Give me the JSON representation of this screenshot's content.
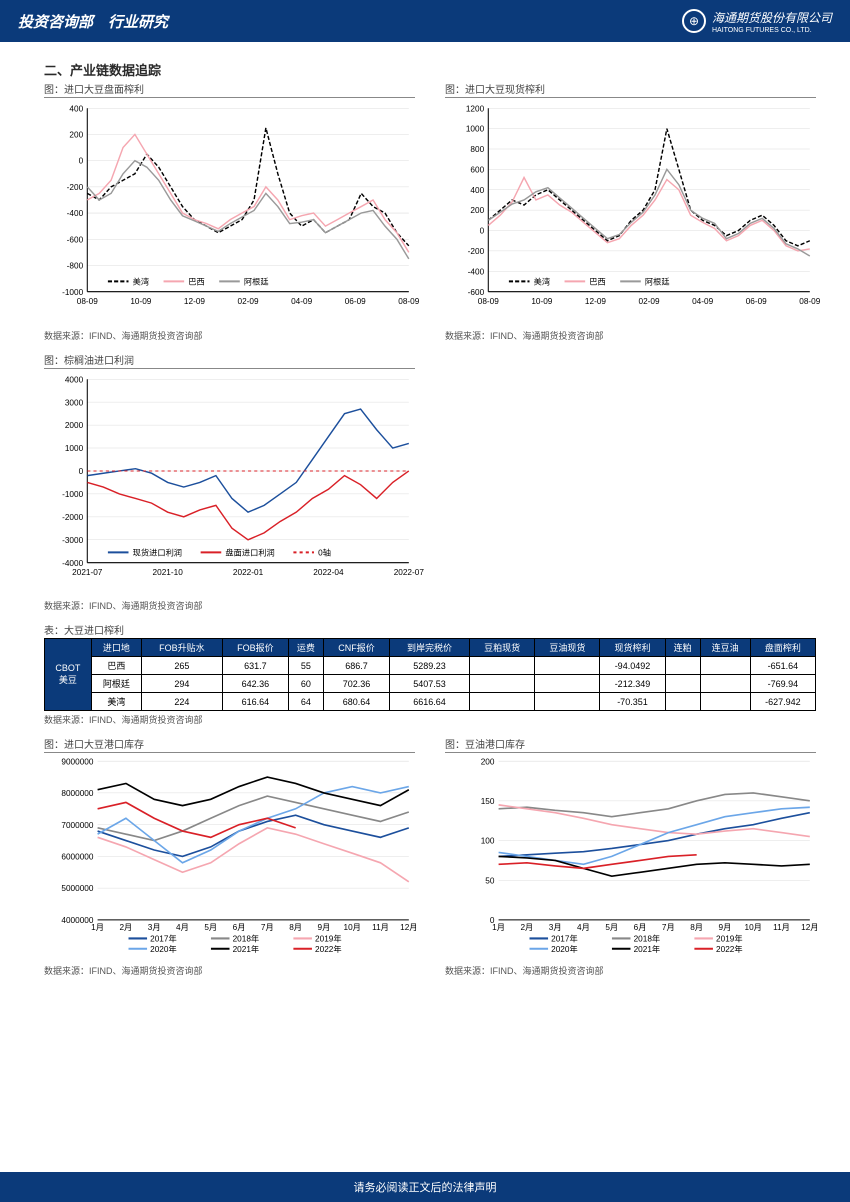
{
  "header": {
    "left": "投资咨询部　行业研究",
    "logo_main": "海通期货股份有限公司",
    "logo_sub": "HAITONG FUTURES CO., LTD."
  },
  "section_title": "二、产业链数据追踪",
  "source_text": "数据来源：IFIND、海通期货投资咨询部",
  "chart1": {
    "title": "图：进口大豆盘面榨利",
    "ylim": [
      -1000,
      400
    ],
    "ytick_step": 200,
    "xticks": [
      "08-09",
      "10-09",
      "12-09",
      "02-09",
      "04-09",
      "06-09",
      "08-09"
    ],
    "series": [
      {
        "name": "美湾",
        "color": "#000000",
        "dash": "4,2"
      },
      {
        "name": "巴西",
        "color": "#f5a6b0",
        "dash": ""
      },
      {
        "name": "阿根廷",
        "color": "#999999",
        "dash": ""
      }
    ],
    "s1": [
      -250,
      -300,
      -200,
      -150,
      -100,
      50,
      -50,
      -200,
      -350,
      -450,
      -500,
      -550,
      -500,
      -450,
      -300,
      250,
      -100,
      -400,
      -500,
      -450,
      -550,
      -500,
      -450,
      -250,
      -350,
      -400,
      -550,
      -650
    ],
    "s2": [
      -300,
      -250,
      -150,
      100,
      200,
      50,
      -100,
      -250,
      -400,
      -450,
      -480,
      -520,
      -450,
      -400,
      -350,
      -200,
      -300,
      -450,
      -420,
      -400,
      -500,
      -450,
      -400,
      -350,
      -300,
      -450,
      -550,
      -700
    ],
    "s3": [
      -200,
      -300,
      -250,
      -100,
      0,
      -50,
      -150,
      -300,
      -420,
      -460,
      -500,
      -540,
      -480,
      -430,
      -380,
      -250,
      -350,
      -480,
      -470,
      -450,
      -550,
      -500,
      -450,
      -400,
      -380,
      -500,
      -600,
      -750
    ]
  },
  "chart2": {
    "title": "图：进口大豆现货榨利",
    "ylim": [
      -600,
      1200
    ],
    "ytick_step": 200,
    "xticks": [
      "08-09",
      "10-09",
      "12-09",
      "02-09",
      "04-09",
      "06-09",
      "08-09"
    ],
    "series": [
      {
        "name": "美湾",
        "color": "#000000",
        "dash": "4,2"
      },
      {
        "name": "巴西",
        "color": "#f5a6b0",
        "dash": ""
      },
      {
        "name": "阿根廷",
        "color": "#999999",
        "dash": ""
      }
    ],
    "s1": [
      100,
      200,
      300,
      250,
      350,
      400,
      300,
      200,
      100,
      0,
      -100,
      -50,
      100,
      200,
      400,
      1000,
      600,
      200,
      100,
      50,
      -50,
      0,
      100,
      150,
      50,
      -100,
      -150,
      -100
    ],
    "s2": [
      50,
      150,
      280,
      520,
      300,
      350,
      250,
      180,
      80,
      -20,
      -120,
      -80,
      50,
      150,
      300,
      500,
      400,
      150,
      80,
      20,
      -100,
      -50,
      50,
      100,
      0,
      -150,
      -200,
      -180
    ],
    "s3": [
      100,
      180,
      260,
      300,
      380,
      420,
      320,
      220,
      120,
      20,
      -80,
      -40,
      80,
      180,
      350,
      600,
      450,
      200,
      120,
      70,
      -80,
      -30,
      70,
      120,
      20,
      -130,
      -180,
      -250
    ]
  },
  "chart3": {
    "title": "图：棕榈油进口利润",
    "ylim": [
      -4000,
      4000
    ],
    "ytick_step": 1000,
    "xticks": [
      "2021-07",
      "2021-10",
      "2022-01",
      "2022-04",
      "2022-07"
    ],
    "series": [
      {
        "name": "现货进口利润",
        "color": "#1c4f9c",
        "dash": ""
      },
      {
        "name": "盘面进口利润",
        "color": "#d92027",
        "dash": ""
      },
      {
        "name": "0轴",
        "color": "#d92027",
        "dash": "3,3"
      }
    ],
    "s1": [
      -200,
      -100,
      0,
      100,
      -100,
      -500,
      -700,
      -500,
      -200,
      -1200,
      -1800,
      -1500,
      -1000,
      -500,
      500,
      1500,
      2500,
      2700,
      1800,
      1000,
      1200
    ],
    "s2": [
      -500,
      -700,
      -1000,
      -1200,
      -1400,
      -1800,
      -2000,
      -1700,
      -1500,
      -2500,
      -3000,
      -2700,
      -2200,
      -1800,
      -1200,
      -800,
      -200,
      -600,
      -1200,
      -500,
      0
    ]
  },
  "table": {
    "title": "表：大豆进口榨利",
    "columns": [
      "进口地",
      "FOB升贴水",
      "FOB报价",
      "运费",
      "CNF报价",
      "到岸完税价",
      "豆粕现货",
      "豆油现货",
      "现货榨利",
      "连粕",
      "连豆油",
      "盘面榨利"
    ],
    "row_header": "CBOT美豆",
    "rows": [
      [
        "巴西",
        "265",
        "631.7",
        "55",
        "686.7",
        "5289.23",
        "",
        "",
        "-94.0492",
        "",
        "",
        "-651.64"
      ],
      [
        "阿根廷",
        "294",
        "642.36",
        "60",
        "702.36",
        "5407.53",
        "",
        "",
        "-212.349",
        "",
        "",
        "-769.94"
      ],
      [
        "美湾",
        "224",
        "616.64",
        "64",
        "680.64",
        "6616.64",
        "",
        "",
        "-70.351",
        "",
        "",
        "-627.942"
      ]
    ]
  },
  "chart4": {
    "title": "图：进口大豆港口库存",
    "ylim": [
      4000000,
      9000000
    ],
    "ytick_step": 1000000,
    "xticks": [
      "1月",
      "2月",
      "3月",
      "4月",
      "5月",
      "6月",
      "7月",
      "8月",
      "9月",
      "10月",
      "11月",
      "12月"
    ],
    "series": [
      {
        "name": "2017年",
        "color": "#1c4f9c"
      },
      {
        "name": "2018年",
        "color": "#888888"
      },
      {
        "name": "2019年",
        "color": "#f5a6b0"
      },
      {
        "name": "2020年",
        "color": "#6ba6e8"
      },
      {
        "name": "2021年",
        "color": "#000000"
      },
      {
        "name": "2022年",
        "color": "#d92027"
      }
    ],
    "data": {
      "2017": [
        6800000,
        6500000,
        6200000,
        6000000,
        6300000,
        6800000,
        7100000,
        7300000,
        7000000,
        6800000,
        6600000,
        6900000
      ],
      "2018": [
        6900000,
        6700000,
        6500000,
        6800000,
        7200000,
        7600000,
        7900000,
        7700000,
        7500000,
        7300000,
        7100000,
        7400000
      ],
      "2019": [
        6600000,
        6300000,
        5900000,
        5500000,
        5800000,
        6400000,
        6900000,
        6700000,
        6400000,
        6100000,
        5800000,
        5200000
      ],
      "2020": [
        6700000,
        7200000,
        6500000,
        5800000,
        6200000,
        6800000,
        7200000,
        7500000,
        8000000,
        8200000,
        8000000,
        8200000
      ],
      "2021": [
        8100000,
        8300000,
        7800000,
        7600000,
        7800000,
        8200000,
        8500000,
        8300000,
        8000000,
        7800000,
        7600000,
        8100000
      ],
      "2022": [
        7500000,
        7700000,
        7200000,
        6800000,
        6600000,
        7000000,
        7200000,
        6900000
      ]
    }
  },
  "chart5": {
    "title": "图：豆油港口库存",
    "ylim": [
      0,
      200
    ],
    "ytick_step": 50,
    "xticks": [
      "1月",
      "2月",
      "3月",
      "4月",
      "5月",
      "6月",
      "7月",
      "8月",
      "9月",
      "10月",
      "11月",
      "12月"
    ],
    "series": [
      {
        "name": "2017年",
        "color": "#1c4f9c"
      },
      {
        "name": "2018年",
        "color": "#888888"
      },
      {
        "name": "2019年",
        "color": "#f5a6b0"
      },
      {
        "name": "2020年",
        "color": "#6ba6e8"
      },
      {
        "name": "2021年",
        "color": "#000000"
      },
      {
        "name": "2022年",
        "color": "#d92027"
      }
    ],
    "data": {
      "2017": [
        80,
        82,
        84,
        86,
        90,
        95,
        100,
        108,
        115,
        120,
        128,
        135
      ],
      "2018": [
        140,
        142,
        138,
        135,
        130,
        135,
        140,
        150,
        158,
        160,
        155,
        150
      ],
      "2019": [
        145,
        140,
        135,
        128,
        120,
        115,
        110,
        108,
        112,
        115,
        110,
        105
      ],
      "2020": [
        85,
        80,
        75,
        70,
        80,
        95,
        110,
        120,
        130,
        135,
        140,
        142
      ],
      "2021": [
        80,
        78,
        75,
        65,
        55,
        60,
        65,
        70,
        72,
        70,
        68,
        70
      ],
      "2022": [
        70,
        72,
        68,
        65,
        70,
        75,
        80,
        82
      ]
    }
  },
  "footer": "请务必阅读正文后的法律声明",
  "colors": {
    "header_bg": "#0b3a7a",
    "grid": "#cccccc",
    "axis": "#000000"
  }
}
